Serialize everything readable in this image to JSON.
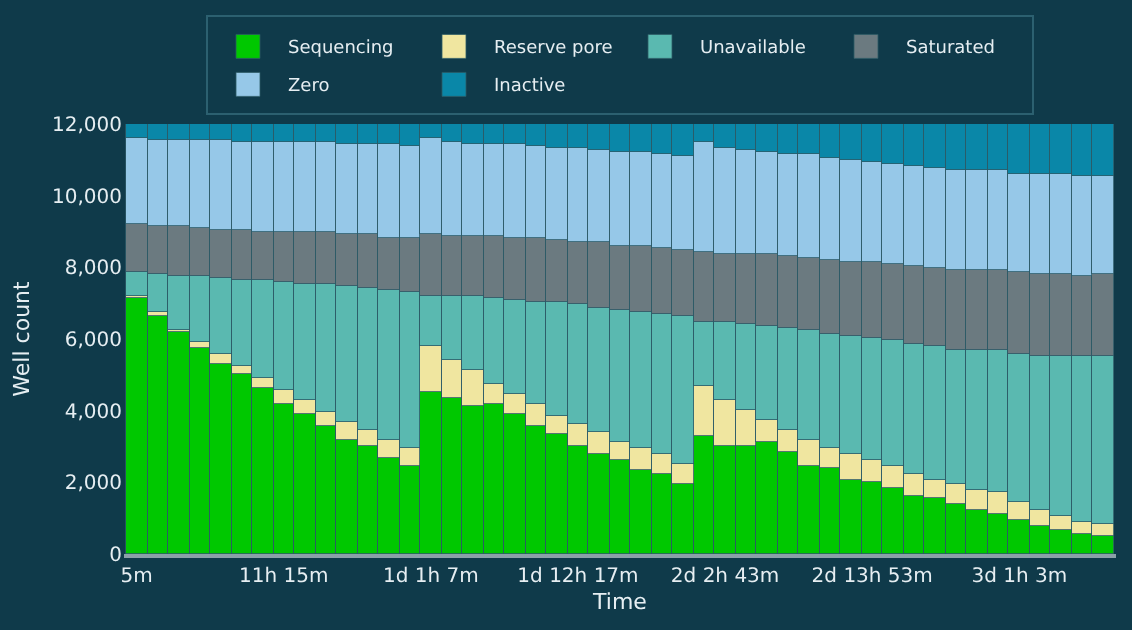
{
  "chart_data": {
    "type": "bar",
    "stacked": true,
    "xlabel": "Time",
    "ylabel": "Well count",
    "legend": "top",
    "grid": false,
    "categories": [
      "5m",
      null,
      null,
      null,
      null,
      null,
      null,
      "11h 15m",
      null,
      null,
      null,
      null,
      null,
      null,
      "1d 1h 7m",
      null,
      null,
      null,
      null,
      null,
      null,
      "1d 12h 17m",
      null,
      null,
      null,
      null,
      null,
      null,
      "2d 2h 43m",
      null,
      null,
      null,
      null,
      null,
      null,
      "2d 13h 53m",
      null,
      null,
      null,
      null,
      null,
      null,
      "3d 1h 3m",
      null,
      null,
      null,
      null
    ],
    "ylim": [
      0,
      12000
    ],
    "yticks": [
      {
        "value": 0,
        "label": "0"
      },
      {
        "value": 2000,
        "label": "2,000"
      },
      {
        "value": 4000,
        "label": "4,000"
      },
      {
        "value": 6000,
        "label": "6,000"
      },
      {
        "value": 8000,
        "label": "8,000"
      },
      {
        "value": 10000,
        "label": "10,000"
      },
      {
        "value": 12000,
        "label": "12,000"
      }
    ],
    "series": [
      {
        "name": "Sequencing",
        "color": "#00c800",
        "values": [
          7160,
          6660,
          6170,
          5750,
          5310,
          5040,
          4610,
          4170,
          3920,
          3590,
          3170,
          3040,
          2690,
          2450,
          4510,
          4360,
          4150,
          4180,
          3930,
          3590,
          3340,
          3030,
          2780,
          2640,
          2360,
          2250,
          1980,
          3270,
          3030,
          2990,
          3140,
          2830,
          2450,
          2410,
          2080,
          2000,
          1870,
          1620,
          1570,
          1370,
          1210,
          1110,
          930,
          790,
          680,
          580,
          500
        ]
      },
      {
        "name": "Reserve pore",
        "color": "#f0e6a0",
        "values": [
          30,
          80,
          100,
          170,
          260,
          180,
          280,
          410,
          360,
          400,
          500,
          400,
          480,
          500,
          1270,
          1060,
          980,
          580,
          530,
          580,
          530,
          610,
          610,
          510,
          580,
          530,
          550,
          1410,
          1260,
          1010,
          610,
          610,
          730,
          560,
          690,
          610,
          580,
          630,
          510,
          560,
          550,
          600,
          530,
          450,
          360,
          330,
          330
        ]
      },
      {
        "name": "Unavailable",
        "color": "#5ab9b0",
        "values": [
          660,
          1070,
          1500,
          1820,
          2130,
          2430,
          2730,
          3010,
          3270,
          3520,
          3800,
          4000,
          4180,
          4360,
          1410,
          1770,
          2070,
          2380,
          2640,
          2880,
          3140,
          3320,
          3500,
          3650,
          3820,
          3930,
          4120,
          1770,
          2180,
          2430,
          2630,
          2860,
          3070,
          3190,
          3320,
          3420,
          3520,
          3620,
          3700,
          3790,
          3930,
          3980,
          4130,
          4310,
          4510,
          4600,
          4690
        ]
      },
      {
        "name": "Saturated",
        "color": "#6b7a80",
        "values": [
          1370,
          1360,
          1360,
          1370,
          1370,
          1390,
          1390,
          1410,
          1440,
          1450,
          1450,
          1470,
          1490,
          1490,
          1740,
          1700,
          1700,
          1720,
          1740,
          1770,
          1770,
          1770,
          1790,
          1820,
          1820,
          1830,
          1850,
          1970,
          1920,
          1950,
          1980,
          2000,
          2020,
          2070,
          2080,
          2120,
          2130,
          2170,
          2180,
          2220,
          2220,
          2220,
          2280,
          2280,
          2250,
          2260,
          2280
        ]
      },
      {
        "name": "Zero",
        "color": "#96c8e8",
        "values": [
          2380,
          2400,
          2430,
          2430,
          2460,
          2480,
          2510,
          2510,
          2510,
          2530,
          2530,
          2550,
          2580,
          2610,
          2690,
          2610,
          2560,
          2560,
          2580,
          2560,
          2560,
          2600,
          2600,
          2610,
          2630,
          2630,
          2610,
          3090,
          2960,
          2880,
          2880,
          2880,
          2880,
          2840,
          2810,
          2810,
          2780,
          2790,
          2810,
          2780,
          2780,
          2810,
          2760,
          2760,
          2780,
          2780,
          2740
        ]
      },
      {
        "name": "Inactive",
        "color": "#0a87a8",
        "values": [
          400,
          430,
          450,
          460,
          460,
          480,
          480,
          500,
          500,
          510,
          550,
          550,
          580,
          600,
          380,
          500,
          550,
          580,
          580,
          630,
          660,
          680,
          730,
          760,
          790,
          830,
          890,
          500,
          660,
          740,
          760,
          830,
          860,
          930,
          1010,
          1040,
          1120,
          1170,
          1220,
          1290,
          1320,
          1290,
          1370,
          1410,
          1420,
          1450,
          1450
        ]
      }
    ]
  }
}
